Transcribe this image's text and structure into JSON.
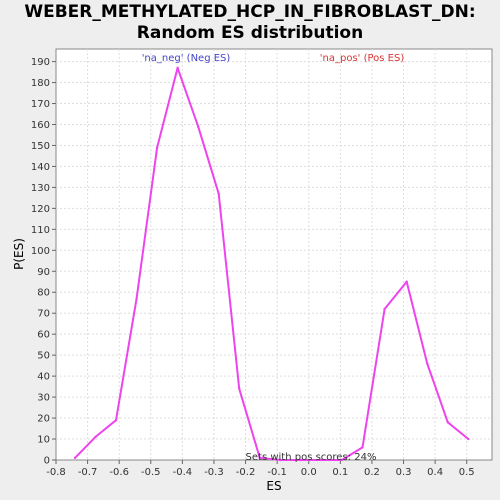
{
  "title_line1": "WEBER_METHYLATED_HCP_IN_FIBROBLAST_DN:",
  "title_line2": "Random ES distribution",
  "chart_data": {
    "type": "line",
    "title": "WEBER_METHYLATED_HCP_IN_FIBROBLAST_DN: Random ES distribution",
    "xlabel": "ES",
    "ylabel": "P(ES)",
    "xlim": [
      -0.8,
      0.58
    ],
    "ylim": [
      0,
      196
    ],
    "xticks": [
      -0.8,
      -0.7,
      -0.6,
      -0.5,
      -0.4,
      -0.3,
      -0.2,
      -0.1,
      0.0,
      0.1,
      0.2,
      0.3,
      0.4,
      0.5
    ],
    "xtick_labels": [
      "-0.8",
      "-0.7",
      "-0.6",
      "-0.5",
      "-0.4",
      "-0.3",
      "-0.2",
      "-0.1",
      "0.0",
      "0.1",
      "0.2",
      "0.3",
      "0.4",
      "0.5"
    ],
    "yticks": [
      0,
      10,
      20,
      30,
      40,
      50,
      60,
      70,
      80,
      90,
      100,
      110,
      120,
      130,
      140,
      150,
      160,
      170,
      180,
      190
    ],
    "grid": true,
    "series": [
      {
        "color": "#ee44ee",
        "x": [
          -0.74,
          -0.675,
          -0.61,
          -0.545,
          -0.48,
          -0.415,
          -0.35,
          -0.285,
          -0.22,
          -0.155,
          -0.09,
          -0.025,
          0.04,
          0.105,
          0.17,
          0.24,
          0.31,
          0.375,
          0.44,
          0.505
        ],
        "y": [
          1,
          11,
          19,
          77,
          149,
          187,
          159,
          127,
          34,
          1,
          0,
          0,
          0,
          0,
          6,
          72,
          85,
          46,
          18,
          10
        ]
      }
    ],
    "legend": [
      {
        "label": "'na_neg' (Neg ES)",
        "color": "#4444cc"
      },
      {
        "label": "'na_pos' (Pos ES)",
        "color": "#dd3333"
      }
    ],
    "annotation": "Sets with pos scores: 24%"
  }
}
